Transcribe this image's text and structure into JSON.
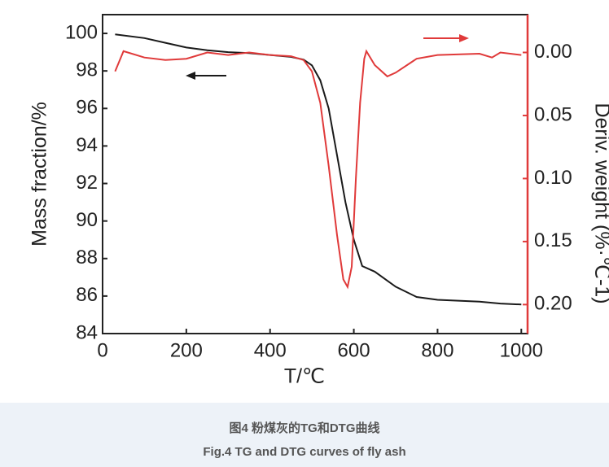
{
  "chart_data": {
    "type": "line",
    "x_label": "T/℃",
    "y_label": "Mass fraction/%",
    "y2_label": "Deriv. weight (%·℃-1)",
    "xlim": [
      0,
      1015
    ],
    "xticks": [
      0,
      200,
      400,
      600,
      800,
      1000
    ],
    "ylim": [
      84,
      101
    ],
    "yticks": [
      84,
      86,
      88,
      90,
      92,
      94,
      96,
      98,
      100
    ],
    "y2lim": [
      -0.03,
      0.223
    ],
    "y2_inverted": true,
    "y2ticks": [
      {
        "value": 0,
        "label": "0.00"
      },
      {
        "value": 0.05,
        "label": "0.05"
      },
      {
        "value": 0.1,
        "label": "0.10"
      },
      {
        "value": 0.15,
        "label": "0.15"
      },
      {
        "value": 0.2,
        "label": "0.20"
      }
    ],
    "series": [
      {
        "name": "TG",
        "color": "#1a1a1a",
        "x": [
          30,
          100,
          150,
          200,
          250,
          300,
          350,
          400,
          450,
          480,
          500,
          520,
          540,
          560,
          580,
          600,
          620,
          650,
          700,
          750,
          800,
          850,
          900,
          950,
          1000
        ],
        "values": [
          99.95,
          99.75,
          99.5,
          99.25,
          99.1,
          99.0,
          98.95,
          98.85,
          98.75,
          98.6,
          98.3,
          97.5,
          96,
          93.5,
          91,
          89,
          87.6,
          87.3,
          86.5,
          85.95,
          85.8,
          85.75,
          85.7,
          85.6,
          85.55
        ]
      },
      {
        "name": "DTG",
        "color": "#e03a3a",
        "axis": "y2",
        "x": [
          30,
          50,
          100,
          150,
          200,
          250,
          300,
          350,
          400,
          450,
          480,
          500,
          520,
          540,
          560,
          575,
          585,
          595,
          605,
          615,
          625,
          630,
          650,
          680,
          700,
          750,
          800,
          900,
          930,
          950,
          1000
        ],
        "values": [
          0.015,
          -0.001,
          0.004,
          0.006,
          0.005,
          0.0,
          0.002,
          0.0,
          0.002,
          0.003,
          0.006,
          0.015,
          0.04,
          0.09,
          0.145,
          0.18,
          0.186,
          0.17,
          0.1,
          0.04,
          0.005,
          -0.001,
          0.01,
          0.019,
          0.016,
          0.005,
          0.002,
          0.001,
          0.004,
          0.0,
          0.002
        ]
      }
    ]
  },
  "caption": {
    "zh": "图4 粉煤灰的TG和DTG曲线",
    "en": "Fig.4 TG and DTG curves of fly ash"
  }
}
